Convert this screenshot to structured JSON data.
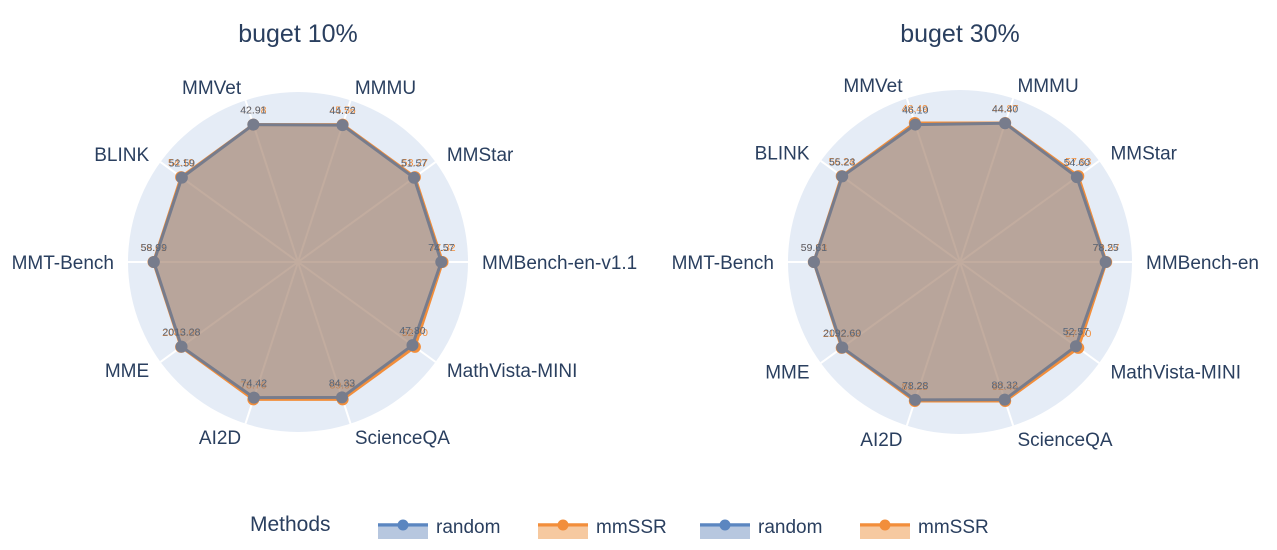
{
  "colors": {
    "random": "#5b86c0",
    "random_fill": "#b7c7df",
    "mmssr": "#f28e3b",
    "mmssr_fill": "#f6c9a0",
    "polar_bg": "#e5ecf6",
    "value_random": "#55657a",
    "value_mmssr": "#f28e3b"
  },
  "legend": {
    "title": "Methods",
    "items": [
      {
        "name": "random",
        "series": "random"
      },
      {
        "name": "mmSSR",
        "series": "mmssr"
      },
      {
        "name": "random",
        "series": "random"
      },
      {
        "name": "mmSSR",
        "series": "mmssr"
      }
    ]
  },
  "chart_data": [
    {
      "type": "radar",
      "title": "buget 10%",
      "categories": [
        "MMMU",
        "MMStar",
        "MMBench-en-v1.1",
        "MathVista-MINI",
        "ScienceQA",
        "AI2D",
        "MME",
        "MMT-Bench",
        "BLINK",
        "MMVet"
      ],
      "series": [
        {
          "name": "random",
          "values": [
            44.72,
            51.57,
            74.57,
            47.8,
            84.33,
            74.42,
            2013.28,
            58.99,
            52.59,
            42.91
          ],
          "labels": [
            "44.72",
            "51.57",
            "74.57",
            "47.80",
            "84.33",
            "74.42",
            "2013.28",
            "58.99",
            "52.59",
            "42.91"
          ]
        },
        {
          "name": "mmSSR",
          "values": [
            45.56,
            53.27,
            77.32,
            52.4,
            89.94,
            78.76,
            2045.0,
            59.61,
            54.1,
            42.98
          ],
          "labels": [
            "45.56",
            "53.27",
            "77.32",
            "52.40",
            "89.94",
            "78.76",
            "2045.00",
            "59.61",
            "54.10",
            "42.98"
          ]
        }
      ]
    },
    {
      "type": "radar",
      "title": "buget 30%",
      "categories": [
        "MMMU",
        "MMStar",
        "MMBench-en",
        "MathVista-MINI",
        "ScienceQA",
        "AI2D",
        "MME",
        "MMT-Bench",
        "BLINK",
        "MMVet"
      ],
      "series": [
        {
          "name": "random",
          "values": [
            44.4,
            54.6,
            78.25,
            52.57,
            88.32,
            78.28,
            2092.6,
            59.61,
            55.23,
            46.1
          ],
          "labels": [
            "44.40",
            "54.60",
            "78.25",
            "52.57",
            "88.32",
            "78.28",
            "2092.60",
            "59.61",
            "55.23",
            "46.10"
          ]
        },
        {
          "name": "mmSSR",
          "values": [
            44.87,
            57.53,
            79.57,
            57.4,
            92.46,
            81.25,
            2132.93,
            59.83,
            56.24,
            48.49
          ],
          "labels": [
            "44.87",
            "57.53",
            "79.57",
            "57.40",
            "92.46",
            "81.25",
            "2132.93",
            "59.83",
            "56.24",
            "48.49"
          ]
        }
      ]
    }
  ]
}
